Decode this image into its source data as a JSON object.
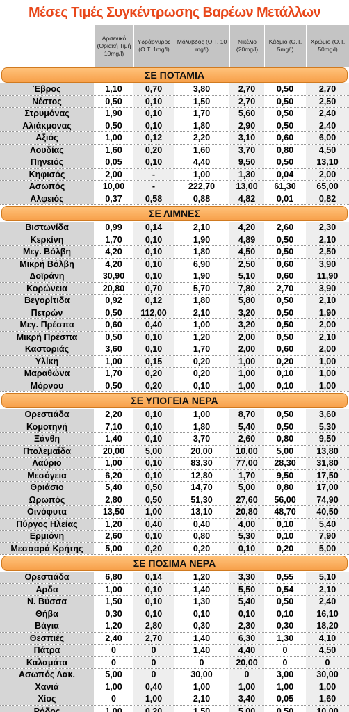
{
  "header": {
    "title": "Μέσες Τιμές Συγκέντρωσης Βαρέων Μετάλλων"
  },
  "table": {
    "columns": [
      "Αρσενικό (Οριακή Τιμή 10mg/l)",
      "Υδράργυρος (Ο.Τ. 1mg/l)",
      "Μόλυβδος (Ο.Τ. 10 mg/l)",
      "Νικέλιο (20mg/l)",
      "Κάδμιο (Ο.Τ. 5mg/l)",
      "Χρώμιο (Ο.Τ. 50mg/l)"
    ],
    "sections": [
      {
        "title": "ΣΕ ΠΟΤΑΜΙΑ",
        "rows": [
          [
            "Έβρος",
            "1,10",
            "0,70",
            "3,80",
            "2,70",
            "0,50",
            "2,70"
          ],
          [
            "Νέστος",
            "0,50",
            "0,10",
            "1,50",
            "2,70",
            "0,50",
            "2,50"
          ],
          [
            "Στρυμόνας",
            "1,90",
            "0,10",
            "1,70",
            "5,60",
            "0,50",
            "2,40"
          ],
          [
            "Αλιάκμονας",
            "0,50",
            "0,10",
            "1,80",
            "2,90",
            "0,50",
            "2,40"
          ],
          [
            "Αξιός",
            "1,00",
            "0,12",
            "2,20",
            "3,10",
            "0,60",
            "6,00"
          ],
          [
            "Λουδίας",
            "1,60",
            "0,20",
            "1,60",
            "3,70",
            "0,80",
            "4,50"
          ],
          [
            "Πηνειός",
            "0,05",
            "0,10",
            "4,40",
            "9,50",
            "0,50",
            "13,10"
          ],
          [
            "Κηφισός",
            "2,00",
            "-",
            "1,00",
            "1,30",
            "0,04",
            "2,00"
          ],
          [
            "Ασωπός",
            "10,00",
            "-",
            "222,70",
            "13,00",
            "61,30",
            "65,00"
          ],
          [
            "Αλφειός",
            "0,37",
            "0,58",
            "0,88",
            "4,82",
            "0,01",
            "0,82"
          ]
        ]
      },
      {
        "title": "ΣΕ ΛΙΜΝΕΣ",
        "rows": [
          [
            "Βιστωνίδα",
            "0,99",
            "0,14",
            "2,10",
            "4,20",
            "2,60",
            "2,30"
          ],
          [
            "Κερκίνη",
            "1,70",
            "0,10",
            "1,90",
            "4,89",
            "0,50",
            "2,10"
          ],
          [
            "Μεγ. Βόλβη",
            "4,20",
            "0,10",
            "1,80",
            "4,50",
            "0,50",
            "2,50"
          ],
          [
            "Μικρή Βόλβη",
            "4,20",
            "0,10",
            "6,90",
            "2,50",
            "0,60",
            "3,90"
          ],
          [
            "Δοϊράνη",
            "30,90",
            "0,10",
            "1,90",
            "5,10",
            "0,60",
            "11,90"
          ],
          [
            "Κορώνεια",
            "20,80",
            "0,70",
            "5,70",
            "7,80",
            "2,70",
            "3,90"
          ],
          [
            "Βεγορίτιδα",
            "0,92",
            "0,12",
            "1,80",
            "5,80",
            "0,50",
            "2,10"
          ],
          [
            "Πετρών",
            "0,50",
            "112,00",
            "2,10",
            "3,20",
            "0,50",
            "1,90"
          ],
          [
            "Μεγ. Πρέσπα",
            "0,60",
            "0,40",
            "1,00",
            "3,20",
            "0,50",
            "2,00"
          ],
          [
            "Μικρή Πρέσπα",
            "0,50",
            "0,10",
            "1,20",
            "2,00",
            "0,50",
            "2,10"
          ],
          [
            "Καστοριάς",
            "3,60",
            "0,10",
            "1,70",
            "2,00",
            "0,60",
            "2,00"
          ],
          [
            "Υλίκη",
            "1,00",
            "0,15",
            "0,20",
            "1,00",
            "0,20",
            "1,00"
          ],
          [
            "Μαραθώνα",
            "1,70",
            "0,20",
            "0,20",
            "1,00",
            "0,10",
            "1,00"
          ],
          [
            "Μόρνου",
            "0,50",
            "0,20",
            "0,10",
            "1,00",
            "0,10",
            "1,00"
          ]
        ]
      },
      {
        "title": "ΣΕ ΥΠΟΓΕΙΑ ΝΕΡΑ",
        "rows": [
          [
            "Ορεστιάδα",
            "2,20",
            "0,10",
            "1,00",
            "8,70",
            "0,50",
            "3,60"
          ],
          [
            "Κομοτηνή",
            "7,10",
            "0,10",
            "1,80",
            "5,40",
            "0,50",
            "5,30"
          ],
          [
            "Ξάνθη",
            "1,40",
            "0,10",
            "3,70",
            "2,60",
            "0,80",
            "9,50"
          ],
          [
            "Πτολεμαΐδα",
            "20,00",
            "5,00",
            "20,00",
            "10,00",
            "5,00",
            "13,80"
          ],
          [
            "Λαύριο",
            "1,00",
            "0,10",
            "83,30",
            "77,00",
            "28,30",
            "31,80"
          ],
          [
            "Μεσόγεια",
            "6,20",
            "0,10",
            "12,80",
            "1,70",
            "9,50",
            "17,50"
          ],
          [
            "Θριάσιο",
            "5,40",
            "0,50",
            "14,70",
            "5,00",
            "0,80",
            "17,00"
          ],
          [
            "Ωρωπός",
            "2,80",
            "0,50",
            "51,30",
            "27,60",
            "56,00",
            "74,90"
          ],
          [
            "Οινόφυτα",
            "13,50",
            "1,00",
            "13,10",
            "20,80",
            "48,70",
            "40,50"
          ],
          [
            "Πύργος Ηλείας",
            "1,20",
            "0,40",
            "0,40",
            "4,00",
            "0,10",
            "5,40"
          ],
          [
            "Ερμιόνη",
            "2,60",
            "0,10",
            "0,80",
            "5,30",
            "0,10",
            "7,90"
          ],
          [
            "Μεσσαρά Κρήτης",
            "5,00",
            "0,20",
            "0,20",
            "0,10",
            "0,20",
            "5,00"
          ]
        ]
      },
      {
        "title": "ΣΕ ΠΟΣΙΜΑ ΝΕΡΑ",
        "rows": [
          [
            "Ορεστιάδα",
            "6,80",
            "0,14",
            "1,20",
            "3,30",
            "0,55",
            "5,10"
          ],
          [
            "Αρδα",
            "1,00",
            "0,10",
            "1,40",
            "5,50",
            "0,54",
            "2,10"
          ],
          [
            "Ν. Βύσσα",
            "1,50",
            "0,10",
            "1,30",
            "5,40",
            "0,50",
            "2,40"
          ],
          [
            "Θήβα",
            "0,30",
            "0,10",
            "0,10",
            "0,10",
            "0,10",
            "16,10"
          ],
          [
            "Βάγια",
            "1,20",
            "2,80",
            "0,30",
            "2,30",
            "0,30",
            "18,20"
          ],
          [
            "Θεσπιές",
            "2,40",
            "2,70",
            "1,40",
            "6,30",
            "1,30",
            "4,10"
          ],
          [
            "Πάτρα",
            "0",
            "0",
            "1,40",
            "4,40",
            "0",
            "4,50"
          ],
          [
            "Καλαμάτα",
            "0",
            "0",
            "0",
            "20,00",
            "0",
            "0"
          ],
          [
            "Ασωπός Λακ.",
            "5,00",
            "0",
            "30,00",
            "0",
            "3,00",
            "30,00"
          ],
          [
            "Χανιά",
            "1,00",
            "0,40",
            "1,00",
            "1,00",
            "1,00",
            "1,00"
          ],
          [
            "Χίος",
            "0",
            "1,00",
            "2,10",
            "3,40",
            "0,05",
            "1,60"
          ],
          [
            "Ρόδος",
            "1,00",
            "0,20",
            "1,50",
            "5,00",
            "0,50",
            "10,00"
          ]
        ]
      }
    ]
  }
}
